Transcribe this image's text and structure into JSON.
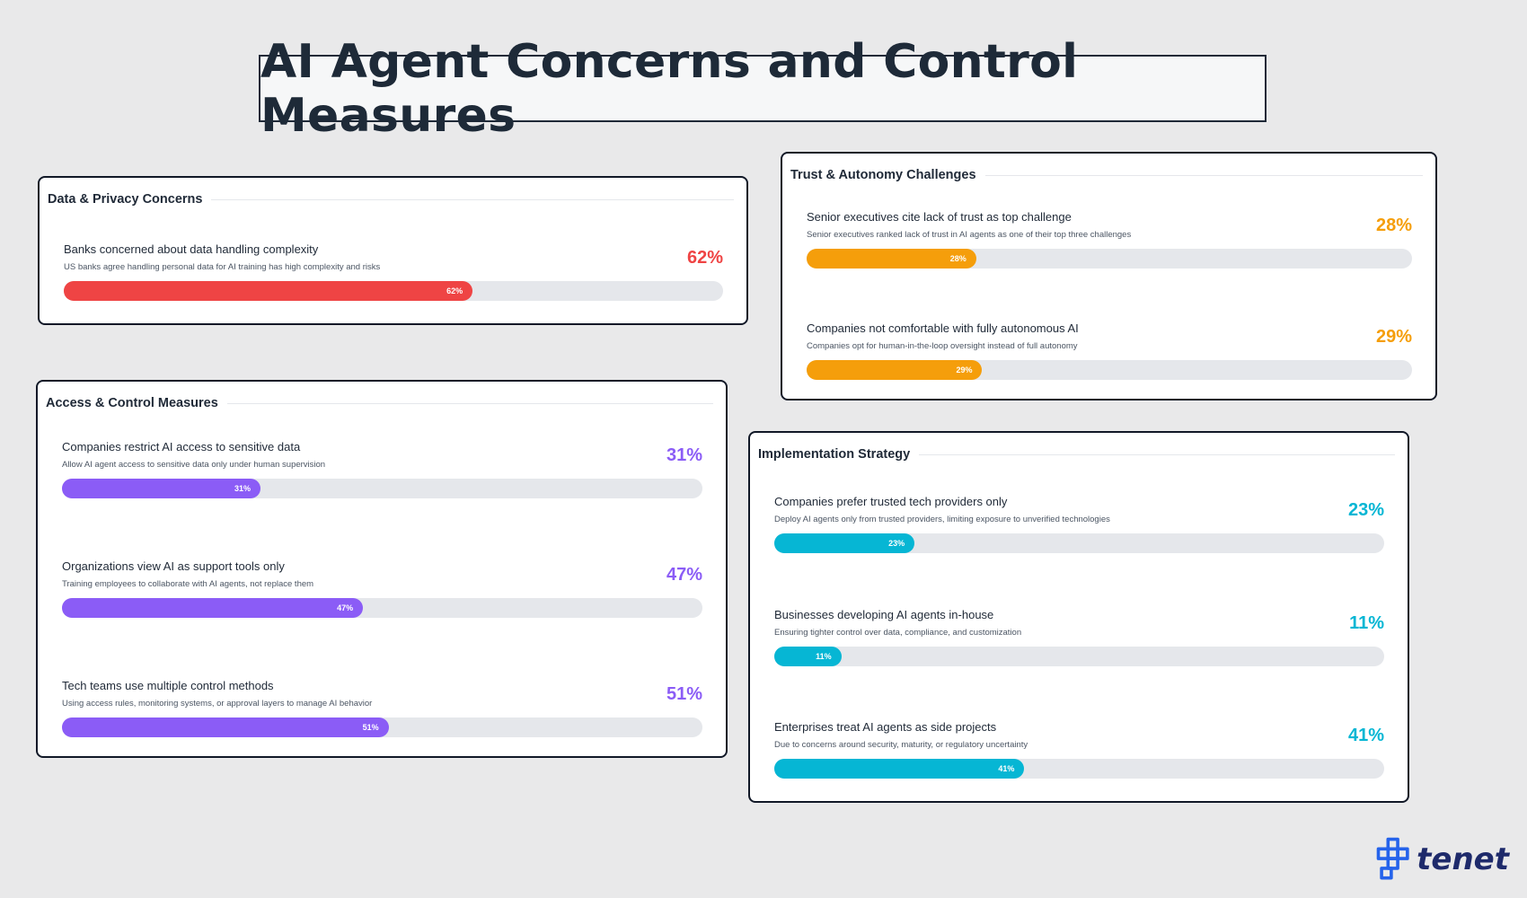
{
  "title": "AI Agent Concerns and Control Measures",
  "chart_data": {
    "type": "bar",
    "orientation": "horizontal",
    "title": "AI Agent Concerns and Control Measures",
    "value_unit": "%",
    "xlim": [
      0,
      100
    ],
    "groups": [
      {
        "title": "Data & Privacy Concerns",
        "color": "#ef4444",
        "metrics": [
          {
            "label": "Banks concerned about data handling complexity",
            "description": "US banks agree handling personal data for AI training has high complexity and risks",
            "value": 62,
            "value_text": "62%"
          }
        ]
      },
      {
        "title": "Access & Control Measures",
        "color": "#8b5cf6",
        "metrics": [
          {
            "label": "Companies restrict AI access to sensitive data",
            "description": "Allow AI agent access to sensitive data only under human supervision",
            "value": 31,
            "value_text": "31%"
          },
          {
            "label": "Organizations view AI as support tools only",
            "description": "Training employees to collaborate with AI agents, not replace them",
            "value": 47,
            "value_text": "47%"
          },
          {
            "label": "Tech teams use multiple control methods",
            "description": "Using access rules, monitoring systems, or approval layers to manage AI behavior",
            "value": 51,
            "value_text": "51%"
          }
        ]
      },
      {
        "title": "Trust & Autonomy Challenges",
        "color": "#f59e0b",
        "metrics": [
          {
            "label": "Senior executives cite lack of trust as top challenge",
            "description": "Senior executives ranked lack of trust in AI agents as one of their top three challenges",
            "value": 28,
            "value_text": "28%"
          },
          {
            "label": "Companies not comfortable with fully autonomous AI",
            "description": "Companies opt for human-in-the-loop oversight instead of full autonomy",
            "value": 29,
            "value_text": "29%"
          }
        ]
      },
      {
        "title": "Implementation Strategy",
        "color": "#06b6d4",
        "metrics": [
          {
            "label": "Companies prefer trusted tech providers only",
            "description": "Deploy AI agents only from trusted providers, limiting exposure to unverified technologies",
            "value": 23,
            "value_text": "23%"
          },
          {
            "label": "Businesses developing AI agents in-house",
            "description": "Ensuring tighter control over data, compliance, and customization",
            "value": 11,
            "value_text": "11%"
          },
          {
            "label": "Enterprises treat AI agents as side projects",
            "description": "Due to concerns around security, maturity, or regulatory uncertainty",
            "value": 41,
            "value_text": "41%"
          }
        ]
      }
    ]
  },
  "logo": {
    "text": "tenet",
    "icon": "tenet-logo-icon",
    "color": "#1e2a6b",
    "accent": "#2563eb"
  }
}
